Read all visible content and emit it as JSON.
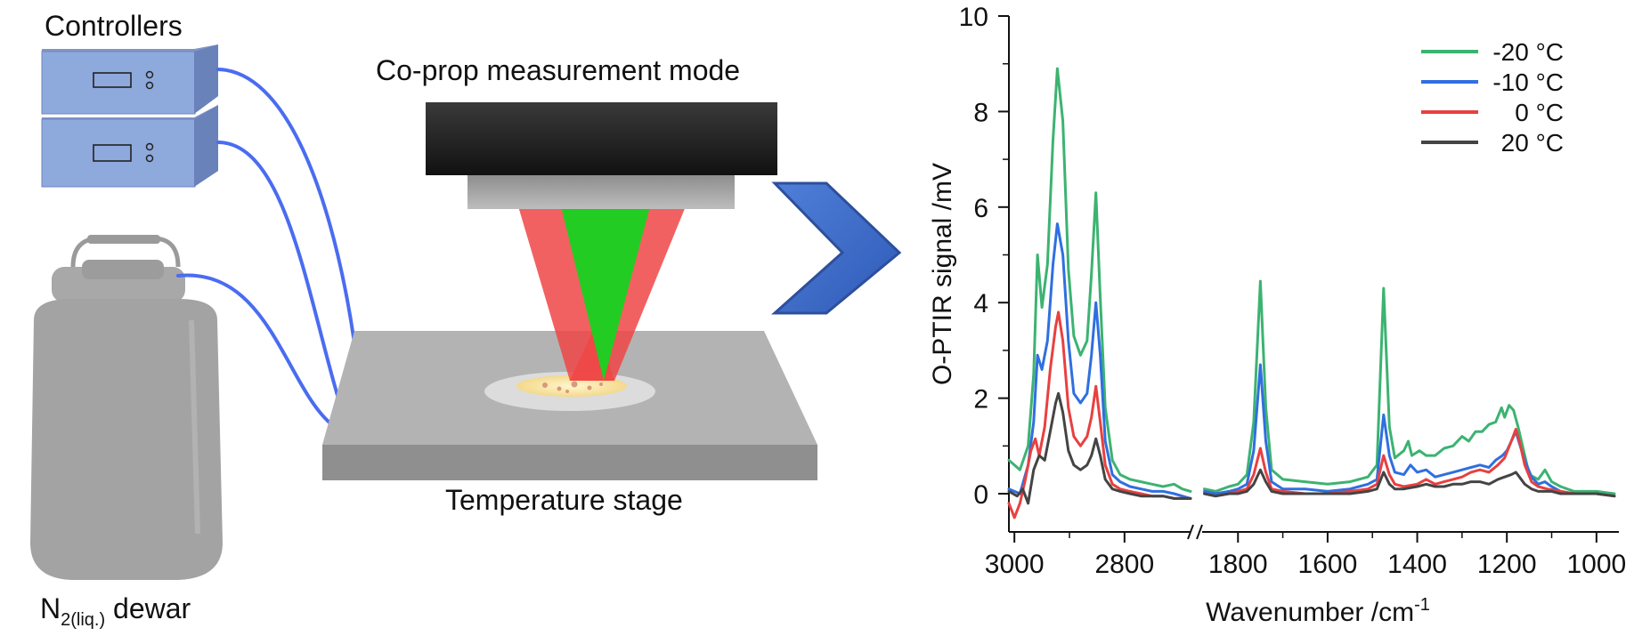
{
  "schematic": {
    "controllers_label": "Controllers",
    "mode_label": "Co-prop measurement mode",
    "stage_label": "Temperature stage",
    "dewar_label_main": "N",
    "dewar_label_sub": "2(liq.)",
    "dewar_label_tail": " dewar",
    "colors": {
      "controller_box": "#8ea9db",
      "cable": "#4a6cf0",
      "stage": "#a6a6a6",
      "objective": "#262626",
      "ir_beam": "#f04545",
      "vis_beam": "#22cc22",
      "arrow": "#3a66c4",
      "dewar": "#a0a0a0"
    },
    "icons": [
      "controller-display-icon",
      "controller-knob-icon",
      "dewar-icon",
      "chevron-arrow-icon"
    ]
  },
  "chart_data": {
    "type": "line",
    "ylabel": "O-PTIR signal /mV",
    "xlabel_main": "Wavenumber /cm",
    "xlabel_sup": "-1",
    "xaxis": "reversed, broken",
    "x_segments": [
      [
        3010,
        2680
      ],
      [
        1880,
        950
      ]
    ],
    "x_ticks": [
      3000,
      2800,
      1800,
      1600,
      1400,
      1200,
      1000
    ],
    "ylim": [
      -0.8,
      10
    ],
    "y_ticks": [
      0,
      2,
      4,
      6,
      8,
      10
    ],
    "legend_position": "top-right",
    "series": [
      {
        "name": "-20 °C",
        "color": "#3cb371",
        "points": [
          [
            3010,
            0.7
          ],
          [
            2990,
            0.5
          ],
          [
            2975,
            1.0
          ],
          [
            2965,
            2.5
          ],
          [
            2958,
            5.0
          ],
          [
            2950,
            3.9
          ],
          [
            2940,
            4.8
          ],
          [
            2930,
            7.4
          ],
          [
            2922,
            8.9
          ],
          [
            2912,
            7.8
          ],
          [
            2902,
            4.7
          ],
          [
            2892,
            3.3
          ],
          [
            2880,
            2.9
          ],
          [
            2868,
            3.2
          ],
          [
            2860,
            4.6
          ],
          [
            2852,
            6.3
          ],
          [
            2844,
            4.1
          ],
          [
            2835,
            1.8
          ],
          [
            2822,
            0.7
          ],
          [
            2808,
            0.4
          ],
          [
            2790,
            0.3
          ],
          [
            2770,
            0.25
          ],
          [
            2750,
            0.2
          ],
          [
            2730,
            0.15
          ],
          [
            2710,
            0.2
          ],
          [
            2695,
            0.1
          ],
          [
            2680,
            0.05
          ],
          [
            1875,
            0.1
          ],
          [
            1850,
            0.05
          ],
          [
            1820,
            0.15
          ],
          [
            1800,
            0.2
          ],
          [
            1780,
            0.4
          ],
          [
            1765,
            1.5
          ],
          [
            1750,
            4.45
          ],
          [
            1738,
            1.8
          ],
          [
            1725,
            0.5
          ],
          [
            1700,
            0.3
          ],
          [
            1650,
            0.25
          ],
          [
            1600,
            0.2
          ],
          [
            1550,
            0.25
          ],
          [
            1510,
            0.35
          ],
          [
            1490,
            0.6
          ],
          [
            1475,
            4.3
          ],
          [
            1462,
            1.4
          ],
          [
            1450,
            0.75
          ],
          [
            1430,
            0.9
          ],
          [
            1420,
            1.1
          ],
          [
            1412,
            0.8
          ],
          [
            1395,
            0.9
          ],
          [
            1380,
            0.8
          ],
          [
            1360,
            0.8
          ],
          [
            1340,
            0.95
          ],
          [
            1320,
            1.0
          ],
          [
            1300,
            1.2
          ],
          [
            1285,
            1.1
          ],
          [
            1270,
            1.3
          ],
          [
            1255,
            1.3
          ],
          [
            1240,
            1.45
          ],
          [
            1225,
            1.5
          ],
          [
            1212,
            1.8
          ],
          [
            1205,
            1.6
          ],
          [
            1195,
            1.85
          ],
          [
            1185,
            1.75
          ],
          [
            1175,
            1.4
          ],
          [
            1165,
            1.0
          ],
          [
            1150,
            0.4
          ],
          [
            1130,
            0.3
          ],
          [
            1115,
            0.5
          ],
          [
            1100,
            0.25
          ],
          [
            1080,
            0.15
          ],
          [
            1050,
            0.05
          ],
          [
            1000,
            0.05
          ],
          [
            960,
            0.0
          ]
        ]
      },
      {
        "name": "-10 °C",
        "color": "#2f6fe0",
        "points": [
          [
            3010,
            0.1
          ],
          [
            2990,
            0.0
          ],
          [
            2975,
            0.6
          ],
          [
            2965,
            1.5
          ],
          [
            2958,
            2.9
          ],
          [
            2950,
            2.6
          ],
          [
            2940,
            3.2
          ],
          [
            2930,
            4.8
          ],
          [
            2922,
            5.65
          ],
          [
            2912,
            5.0
          ],
          [
            2902,
            3.2
          ],
          [
            2892,
            2.1
          ],
          [
            2880,
            1.9
          ],
          [
            2868,
            2.1
          ],
          [
            2860,
            2.9
          ],
          [
            2852,
            4.0
          ],
          [
            2844,
            2.9
          ],
          [
            2835,
            1.1
          ],
          [
            2822,
            0.4
          ],
          [
            2808,
            0.25
          ],
          [
            2790,
            0.15
          ],
          [
            2770,
            0.1
          ],
          [
            2750,
            0.05
          ],
          [
            2730,
            0.05
          ],
          [
            2710,
            0.0
          ],
          [
            2695,
            -0.05
          ],
          [
            2680,
            -0.1
          ],
          [
            1875,
            0.05
          ],
          [
            1850,
            0.0
          ],
          [
            1820,
            0.05
          ],
          [
            1800,
            0.1
          ],
          [
            1780,
            0.2
          ],
          [
            1765,
            0.9
          ],
          [
            1750,
            2.7
          ],
          [
            1738,
            1.1
          ],
          [
            1725,
            0.25
          ],
          [
            1700,
            0.1
          ],
          [
            1650,
            0.1
          ],
          [
            1600,
            0.05
          ],
          [
            1550,
            0.1
          ],
          [
            1510,
            0.2
          ],
          [
            1490,
            0.3
          ],
          [
            1475,
            1.65
          ],
          [
            1462,
            0.8
          ],
          [
            1450,
            0.45
          ],
          [
            1430,
            0.4
          ],
          [
            1415,
            0.6
          ],
          [
            1400,
            0.45
          ],
          [
            1380,
            0.5
          ],
          [
            1360,
            0.35
          ],
          [
            1340,
            0.4
          ],
          [
            1320,
            0.45
          ],
          [
            1300,
            0.5
          ],
          [
            1280,
            0.55
          ],
          [
            1260,
            0.6
          ],
          [
            1240,
            0.55
          ],
          [
            1225,
            0.7
          ],
          [
            1210,
            0.8
          ],
          [
            1200,
            0.9
          ],
          [
            1190,
            1.1
          ],
          [
            1180,
            1.3
          ],
          [
            1172,
            1.05
          ],
          [
            1160,
            0.7
          ],
          [
            1145,
            0.35
          ],
          [
            1130,
            0.2
          ],
          [
            1115,
            0.25
          ],
          [
            1100,
            0.15
          ],
          [
            1080,
            0.05
          ],
          [
            1050,
            0.0
          ],
          [
            1000,
            0.0
          ],
          [
            960,
            -0.05
          ]
        ]
      },
      {
        "name": "0 °C",
        "color": "#e84040",
        "points": [
          [
            3010,
            -0.2
          ],
          [
            3000,
            -0.5
          ],
          [
            2990,
            -0.2
          ],
          [
            2980,
            0.3
          ],
          [
            2970,
            0.9
          ],
          [
            2962,
            1.15
          ],
          [
            2955,
            0.8
          ],
          [
            2945,
            1.4
          ],
          [
            2935,
            2.6
          ],
          [
            2925,
            3.5
          ],
          [
            2920,
            3.8
          ],
          [
            2912,
            3.2
          ],
          [
            2902,
            1.8
          ],
          [
            2892,
            1.2
          ],
          [
            2880,
            1.0
          ],
          [
            2868,
            1.2
          ],
          [
            2860,
            1.6
          ],
          [
            2852,
            2.25
          ],
          [
            2844,
            1.5
          ],
          [
            2835,
            0.6
          ],
          [
            2822,
            0.2
          ],
          [
            2808,
            0.1
          ],
          [
            2790,
            0.05
          ],
          [
            2770,
            0.0
          ],
          [
            2750,
            -0.05
          ],
          [
            2730,
            -0.05
          ],
          [
            2710,
            -0.1
          ],
          [
            2695,
            -0.1
          ],
          [
            2680,
            -0.1
          ],
          [
            1875,
            0.0
          ],
          [
            1850,
            -0.05
          ],
          [
            1820,
            0.0
          ],
          [
            1800,
            0.05
          ],
          [
            1780,
            0.1
          ],
          [
            1765,
            0.4
          ],
          [
            1750,
            0.95
          ],
          [
            1738,
            0.45
          ],
          [
            1725,
            0.1
          ],
          [
            1700,
            0.05
          ],
          [
            1650,
            0.0
          ],
          [
            1600,
            0.0
          ],
          [
            1550,
            0.05
          ],
          [
            1510,
            0.1
          ],
          [
            1490,
            0.2
          ],
          [
            1475,
            0.8
          ],
          [
            1462,
            0.4
          ],
          [
            1450,
            0.2
          ],
          [
            1430,
            0.15
          ],
          [
            1400,
            0.2
          ],
          [
            1380,
            0.3
          ],
          [
            1360,
            0.2
          ],
          [
            1340,
            0.25
          ],
          [
            1320,
            0.3
          ],
          [
            1300,
            0.35
          ],
          [
            1280,
            0.45
          ],
          [
            1260,
            0.5
          ],
          [
            1240,
            0.45
          ],
          [
            1220,
            0.6
          ],
          [
            1205,
            0.75
          ],
          [
            1190,
            1.1
          ],
          [
            1180,
            1.35
          ],
          [
            1172,
            1.1
          ],
          [
            1160,
            0.6
          ],
          [
            1145,
            0.25
          ],
          [
            1130,
            0.15
          ],
          [
            1110,
            0.1
          ],
          [
            1080,
            0.05
          ],
          [
            1050,
            0.0
          ],
          [
            1000,
            0.0
          ],
          [
            960,
            -0.05
          ]
        ]
      },
      {
        "name": "20 °C",
        "color": "#444444",
        "points": [
          [
            3010,
            0.05
          ],
          [
            2995,
            -0.05
          ],
          [
            2985,
            0.1
          ],
          [
            2975,
            -0.2
          ],
          [
            2965,
            0.5
          ],
          [
            2955,
            0.8
          ],
          [
            2945,
            0.7
          ],
          [
            2935,
            1.3
          ],
          [
            2925,
            1.9
          ],
          [
            2920,
            2.1
          ],
          [
            2912,
            1.7
          ],
          [
            2902,
            0.9
          ],
          [
            2892,
            0.6
          ],
          [
            2880,
            0.5
          ],
          [
            2868,
            0.6
          ],
          [
            2860,
            0.8
          ],
          [
            2852,
            1.15
          ],
          [
            2844,
            0.8
          ],
          [
            2835,
            0.3
          ],
          [
            2822,
            0.1
          ],
          [
            2808,
            0.05
          ],
          [
            2790,
            0.0
          ],
          [
            2770,
            -0.05
          ],
          [
            2750,
            -0.05
          ],
          [
            2730,
            -0.05
          ],
          [
            2710,
            -0.1
          ],
          [
            2695,
            -0.1
          ],
          [
            2680,
            -0.1
          ],
          [
            1875,
            0.0
          ],
          [
            1850,
            -0.05
          ],
          [
            1820,
            0.0
          ],
          [
            1800,
            0.0
          ],
          [
            1780,
            0.05
          ],
          [
            1765,
            0.2
          ],
          [
            1750,
            0.5
          ],
          [
            1738,
            0.25
          ],
          [
            1725,
            0.05
          ],
          [
            1700,
            0.0
          ],
          [
            1650,
            0.0
          ],
          [
            1600,
            0.0
          ],
          [
            1550,
            0.0
          ],
          [
            1510,
            0.05
          ],
          [
            1490,
            0.1
          ],
          [
            1475,
            0.45
          ],
          [
            1462,
            0.2
          ],
          [
            1450,
            0.1
          ],
          [
            1430,
            0.1
          ],
          [
            1400,
            0.15
          ],
          [
            1380,
            0.2
          ],
          [
            1360,
            0.15
          ],
          [
            1340,
            0.15
          ],
          [
            1320,
            0.2
          ],
          [
            1300,
            0.2
          ],
          [
            1280,
            0.25
          ],
          [
            1260,
            0.25
          ],
          [
            1240,
            0.2
          ],
          [
            1220,
            0.3
          ],
          [
            1205,
            0.35
          ],
          [
            1190,
            0.4
          ],
          [
            1180,
            0.45
          ],
          [
            1172,
            0.35
          ],
          [
            1160,
            0.2
          ],
          [
            1145,
            0.1
          ],
          [
            1130,
            0.05
          ],
          [
            1100,
            0.05
          ],
          [
            1080,
            0.0
          ],
          [
            1050,
            0.0
          ],
          [
            1000,
            0.0
          ],
          [
            960,
            -0.05
          ]
        ]
      }
    ]
  }
}
